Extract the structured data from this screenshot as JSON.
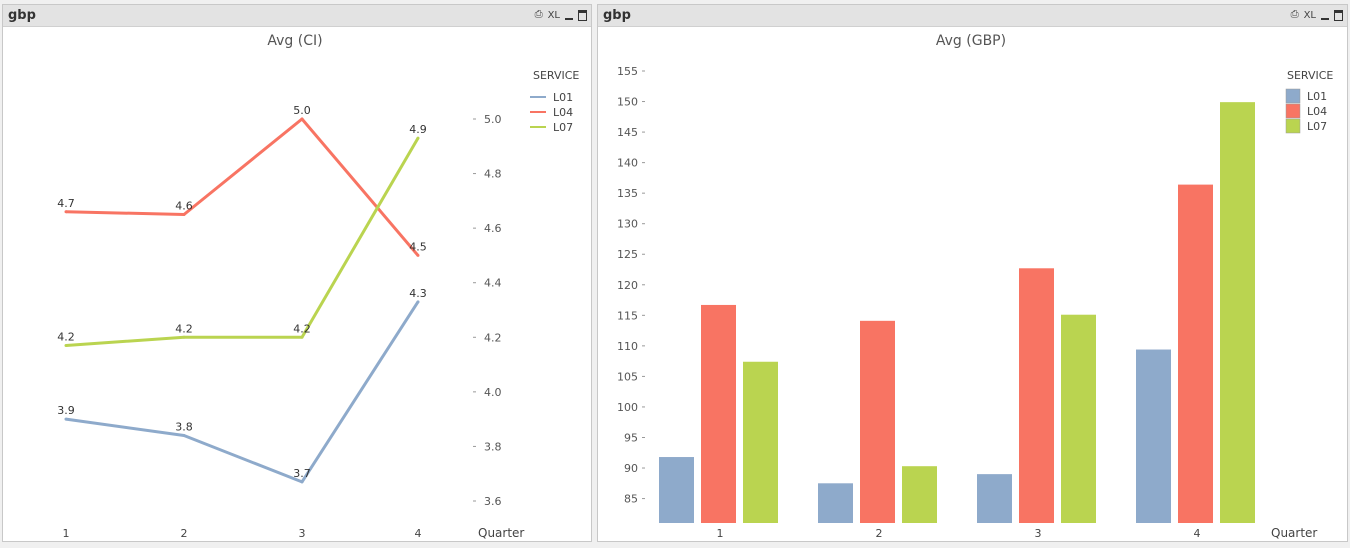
{
  "panels": [
    {
      "title": "gbp",
      "xl_label": "XL"
    },
    {
      "title": "gbp",
      "xl_label": "XL"
    }
  ],
  "chart_data": [
    {
      "type": "line",
      "title": "Avg (CI)",
      "xlabel": "Quarter",
      "categories": [
        "1",
        "2",
        "3",
        "4"
      ],
      "legend_title": "SERVICE",
      "legend_position": "top-right",
      "y_axis_position": "right",
      "ylim": [
        3.5,
        5.2
      ],
      "yticks": [
        "3.6",
        "3.8",
        "4.0",
        "4.2",
        "4.4",
        "4.6",
        "4.8",
        "5.0"
      ],
      "series": [
        {
          "name": "L01",
          "color": "#8eaacb",
          "values": [
            3.9,
            3.84,
            3.67,
            4.33
          ],
          "labels": [
            "3.9",
            "3.8",
            "3.7",
            "4.3"
          ]
        },
        {
          "name": "L04",
          "color": "#f87463",
          "values": [
            4.66,
            4.65,
            5.0,
            4.5
          ],
          "labels": [
            "4.7",
            "4.6",
            "5.0",
            "4.5"
          ]
        },
        {
          "name": "L07",
          "color": "#bad450",
          "values": [
            4.17,
            4.2,
            4.2,
            4.93
          ],
          "labels": [
            "4.2",
            "4.2",
            "4.2",
            "4.9"
          ]
        }
      ]
    },
    {
      "type": "bar",
      "title": "Avg (GBP)",
      "xlabel": "Quarter",
      "categories": [
        "1",
        "2",
        "3",
        "4"
      ],
      "legend_title": "SERVICE",
      "legend_position": "top-right",
      "ylim": [
        81,
        157
      ],
      "yticks": [
        "85",
        "90",
        "95",
        "100",
        "105",
        "110",
        "115",
        "120",
        "125",
        "130",
        "135",
        "140",
        "145",
        "150",
        "155"
      ],
      "series": [
        {
          "name": "L01",
          "color": "#8eaacb",
          "values": [
            91.8,
            87.5,
            89.0,
            109.4
          ]
        },
        {
          "name": "L04",
          "color": "#f87463",
          "values": [
            116.7,
            114.1,
            122.7,
            136.4
          ]
        },
        {
          "name": "L07",
          "color": "#bad450",
          "values": [
            107.4,
            90.3,
            115.1,
            149.9
          ]
        }
      ]
    }
  ]
}
